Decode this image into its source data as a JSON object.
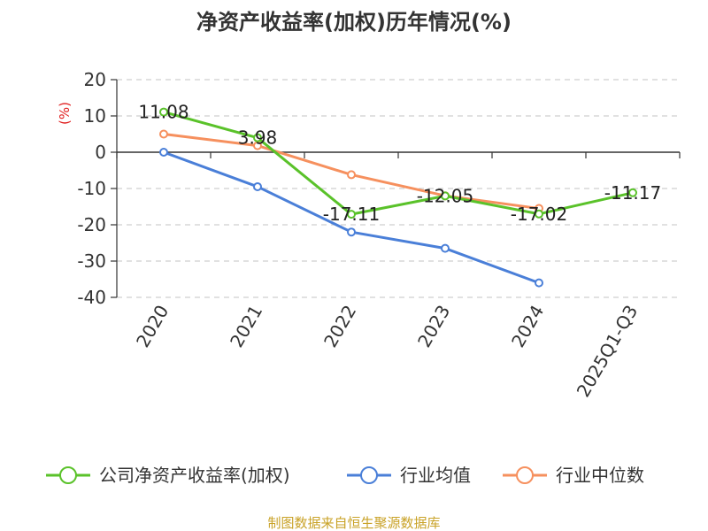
{
  "chart_data": {
    "type": "line",
    "title": "净资产收益率(加权)历年情况(%)",
    "ylabel": "(%)",
    "categories": [
      "2020",
      "2021",
      "2022",
      "2023",
      "2024",
      "2025Q1-Q3"
    ],
    "yticks": [
      "20",
      "10",
      "0",
      "-10",
      "-20",
      "-30",
      "-40"
    ],
    "ylim": [
      -40,
      20
    ],
    "grid": true,
    "legend_position": "bottom",
    "series": [
      {
        "name": "公司净资产收益率(加权)",
        "color": "#5ac22a",
        "values": [
          11.08,
          3.98,
          -17.11,
          -12.05,
          -17.02,
          -11.17
        ],
        "labels": [
          "11.08",
          "3.98",
          "-17.11",
          "-12.05",
          "-17.02",
          "-11.17"
        ]
      },
      {
        "name": "行业均值",
        "color": "#4a7fd8",
        "values": [
          0.0,
          -9.5,
          -22.0,
          -26.5,
          -36.0,
          null
        ]
      },
      {
        "name": "行业中位数",
        "color": "#f6905e",
        "values": [
          5.0,
          1.8,
          -6.2,
          -12.0,
          -15.5,
          null
        ]
      }
    ],
    "source": "制图数据来自恒生聚源数据库",
    "ylabel_color": "#e02020",
    "source_color": "#c9a227"
  }
}
